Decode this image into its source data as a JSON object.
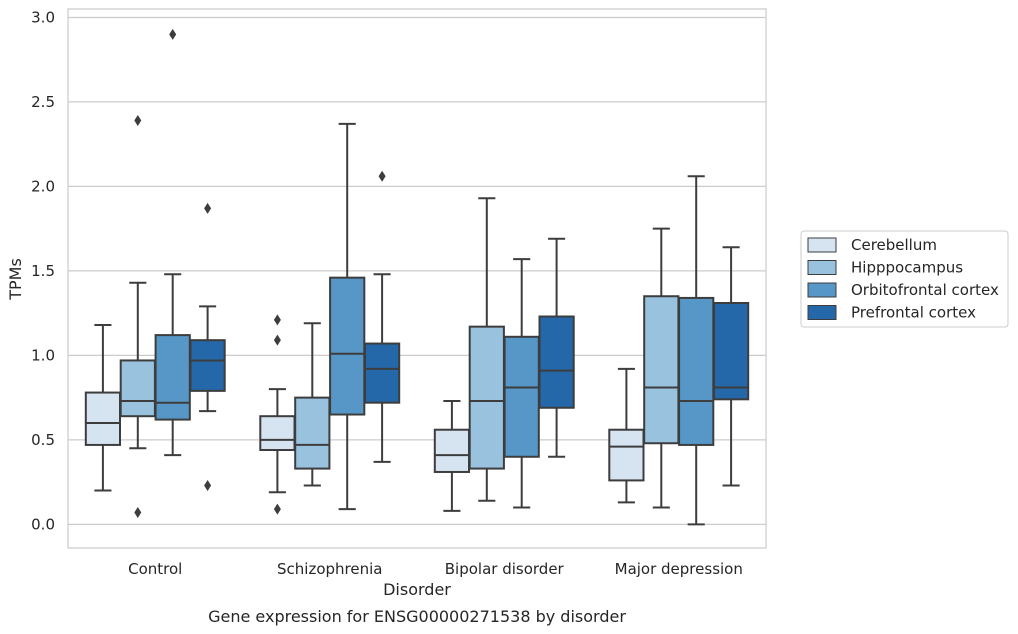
{
  "chart_data": {
    "type": "box",
    "title": "",
    "caption": "Gene expression for ENSG00000271538 by disorder",
    "xlabel": "Disorder",
    "ylabel": "TPMs",
    "ylim": [
      -0.14,
      3.05
    ],
    "yticks": [
      "0.0",
      "0.5",
      "1.0",
      "1.5",
      "2.0",
      "2.5",
      "3.0"
    ],
    "grid": "horizontal",
    "legend_position": "right",
    "categories": [
      "Control",
      "Schizophrenia",
      "Bipolar disorder",
      "Major depression"
    ],
    "series": [
      {
        "name": "Cerebellum",
        "color": "#d6e4f2",
        "boxes": [
          {
            "whisker_low": 0.2,
            "q1": 0.47,
            "median": 0.6,
            "q3": 0.78,
            "whisker_high": 1.18,
            "outliers": []
          },
          {
            "whisker_low": 0.19,
            "q1": 0.44,
            "median": 0.5,
            "q3": 0.64,
            "whisker_high": 0.8,
            "outliers": [
              1.21,
              1.09,
              0.09
            ]
          },
          {
            "whisker_low": 0.08,
            "q1": 0.31,
            "median": 0.41,
            "q3": 0.56,
            "whisker_high": 0.73,
            "outliers": []
          },
          {
            "whisker_low": 0.13,
            "q1": 0.26,
            "median": 0.46,
            "q3": 0.56,
            "whisker_high": 0.92,
            "outliers": []
          }
        ]
      },
      {
        "name": "Hipppocampus",
        "color": "#99c2de",
        "boxes": [
          {
            "whisker_low": 0.45,
            "q1": 0.64,
            "median": 0.73,
            "q3": 0.97,
            "whisker_high": 1.43,
            "outliers": [
              2.39,
              0.07
            ]
          },
          {
            "whisker_low": 0.23,
            "q1": 0.33,
            "median": 0.47,
            "q3": 0.75,
            "whisker_high": 1.19,
            "outliers": []
          },
          {
            "whisker_low": 0.14,
            "q1": 0.33,
            "median": 0.73,
            "q3": 1.17,
            "whisker_high": 1.93,
            "outliers": []
          },
          {
            "whisker_low": 0.1,
            "q1": 0.48,
            "median": 0.81,
            "q3": 1.35,
            "whisker_high": 1.75,
            "outliers": []
          }
        ]
      },
      {
        "name": "Orbitofrontal cortex",
        "color": "#5697c7",
        "boxes": [
          {
            "whisker_low": 0.41,
            "q1": 0.62,
            "median": 0.72,
            "q3": 1.12,
            "whisker_high": 1.48,
            "outliers": [
              2.9
            ]
          },
          {
            "whisker_low": 0.09,
            "q1": 0.65,
            "median": 1.01,
            "q3": 1.46,
            "whisker_high": 2.37,
            "outliers": []
          },
          {
            "whisker_low": 0.1,
            "q1": 0.4,
            "median": 0.81,
            "q3": 1.11,
            "whisker_high": 1.57,
            "outliers": []
          },
          {
            "whisker_low": 0.0,
            "q1": 0.47,
            "median": 0.73,
            "q3": 1.34,
            "whisker_high": 2.06,
            "outliers": []
          }
        ]
      },
      {
        "name": "Prefrontal cortex",
        "color": "#2468a9",
        "boxes": [
          {
            "whisker_low": 0.67,
            "q1": 0.79,
            "median": 0.97,
            "q3": 1.09,
            "whisker_high": 1.29,
            "outliers": [
              1.87,
              0.23
            ]
          },
          {
            "whisker_low": 0.37,
            "q1": 0.72,
            "median": 0.92,
            "q3": 1.07,
            "whisker_high": 1.48,
            "outliers": [
              2.06
            ]
          },
          {
            "whisker_low": 0.4,
            "q1": 0.69,
            "median": 0.91,
            "q3": 1.23,
            "whisker_high": 1.69,
            "outliers": []
          },
          {
            "whisker_low": 0.23,
            "q1": 0.74,
            "median": 0.81,
            "q3": 1.31,
            "whisker_high": 1.64,
            "outliers": []
          }
        ]
      }
    ]
  }
}
